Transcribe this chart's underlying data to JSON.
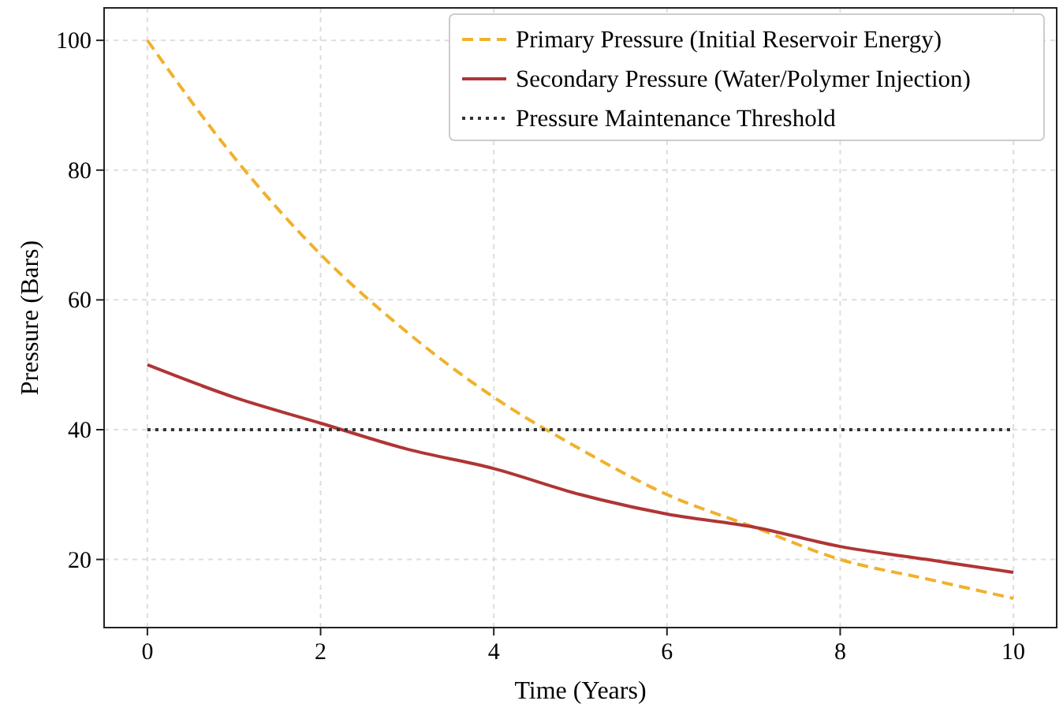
{
  "chart_data": {
    "type": "line",
    "xlabel": "Time (Years)",
    "ylabel": "Pressure (Bars)",
    "x": [
      0,
      1,
      2,
      3,
      4,
      5,
      6,
      7,
      8,
      9,
      10
    ],
    "series": [
      {
        "name": "Primary Pressure (Initial Reservoir Energy)",
        "color": "#f0b12c",
        "line_style": "dashed",
        "values": [
          100,
          82,
          67,
          55,
          45,
          37,
          30,
          25,
          20,
          17,
          14
        ]
      },
      {
        "name": "Secondary Pressure (Water/Polymer Injection)",
        "color": "#b03535",
        "line_style": "solid",
        "values": [
          50,
          45,
          41,
          37,
          34,
          30,
          27,
          25,
          22,
          20,
          18
        ]
      },
      {
        "name": "Pressure Maintenance Threshold",
        "color": "#333333",
        "line_style": "dotted",
        "x": [
          0,
          10
        ],
        "values": [
          40,
          40
        ]
      }
    ],
    "xlim": [
      -0.5,
      10.5
    ],
    "xticks": [
      0,
      2,
      4,
      6,
      8,
      10
    ],
    "ylim": [
      9.5,
      105
    ],
    "yticks": [
      20,
      40,
      60,
      80,
      100
    ],
    "grid": true,
    "legend": "top right"
  }
}
